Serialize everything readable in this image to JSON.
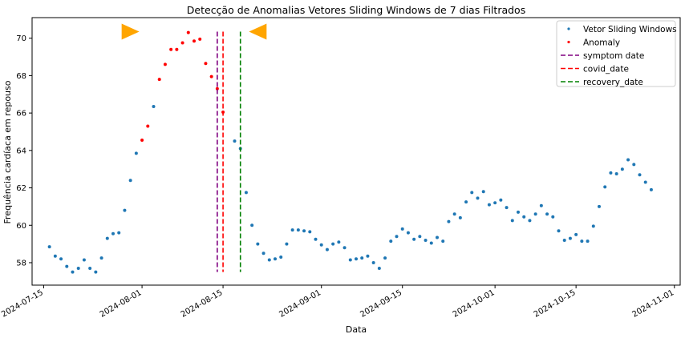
{
  "chart_data": {
    "type": "scatter",
    "title": "Detecção de Anomalias Vetores Sliding Windows de 7 dias Filtrados",
    "xlabel": "Data",
    "ylabel": "Frequência cardíaca em repouso",
    "xlim": [
      "2024-07-13",
      "2024-11-02"
    ],
    "ylim": [
      56.8,
      71.1
    ],
    "x_ticks": [
      "2024-07-15",
      "2024-08-01",
      "2024-08-15",
      "2024-09-01",
      "2024-09-15",
      "2024-10-01",
      "2024-10-15",
      "2024-11-01"
    ],
    "y_ticks": [
      58,
      60,
      62,
      64,
      66,
      68,
      70
    ],
    "grid": false,
    "legend_position": "top-right",
    "series": [
      {
        "name": "Vetor Sliding Windows",
        "color": "#1f77b4",
        "points": [
          [
            "2024-07-16",
            58.85
          ],
          [
            "2024-07-17",
            58.35
          ],
          [
            "2024-07-18",
            58.2
          ],
          [
            "2024-07-19",
            57.8
          ],
          [
            "2024-07-20",
            57.5
          ],
          [
            "2024-07-21",
            57.7
          ],
          [
            "2024-07-22",
            58.15
          ],
          [
            "2024-07-23",
            57.7
          ],
          [
            "2024-07-24",
            57.5
          ],
          [
            "2024-07-25",
            58.25
          ],
          [
            "2024-07-26",
            59.3
          ],
          [
            "2024-07-27",
            59.55
          ],
          [
            "2024-07-28",
            59.6
          ],
          [
            "2024-07-29",
            60.8
          ],
          [
            "2024-07-30",
            62.4
          ],
          [
            "2024-07-31",
            63.85
          ],
          [
            "2024-08-03",
            66.35
          ],
          [
            "2024-08-17",
            64.5
          ],
          [
            "2024-08-18",
            64.1
          ],
          [
            "2024-08-19",
            61.75
          ],
          [
            "2024-08-20",
            60.0
          ],
          [
            "2024-08-21",
            59.0
          ],
          [
            "2024-08-22",
            58.5
          ],
          [
            "2024-08-23",
            58.15
          ],
          [
            "2024-08-24",
            58.2
          ],
          [
            "2024-08-25",
            58.3
          ],
          [
            "2024-08-26",
            59.0
          ],
          [
            "2024-08-27",
            59.75
          ],
          [
            "2024-08-28",
            59.75
          ],
          [
            "2024-08-29",
            59.7
          ],
          [
            "2024-08-30",
            59.65
          ],
          [
            "2024-08-31",
            59.25
          ],
          [
            "2024-09-01",
            58.95
          ],
          [
            "2024-09-02",
            58.7
          ],
          [
            "2024-09-03",
            59.0
          ],
          [
            "2024-09-04",
            59.1
          ],
          [
            "2024-09-05",
            58.8
          ],
          [
            "2024-09-06",
            58.15
          ],
          [
            "2024-09-07",
            58.2
          ],
          [
            "2024-09-08",
            58.25
          ],
          [
            "2024-09-09",
            58.35
          ],
          [
            "2024-09-10",
            58.0
          ],
          [
            "2024-09-11",
            57.7
          ],
          [
            "2024-09-12",
            58.25
          ],
          [
            "2024-09-13",
            59.15
          ],
          [
            "2024-09-14",
            59.4
          ],
          [
            "2024-09-15",
            59.8
          ],
          [
            "2024-09-16",
            59.6
          ],
          [
            "2024-09-17",
            59.25
          ],
          [
            "2024-09-18",
            59.4
          ],
          [
            "2024-09-19",
            59.2
          ],
          [
            "2024-09-20",
            59.05
          ],
          [
            "2024-09-21",
            59.35
          ],
          [
            "2024-09-22",
            59.15
          ],
          [
            "2024-09-23",
            60.2
          ],
          [
            "2024-09-24",
            60.6
          ],
          [
            "2024-09-25",
            60.4
          ],
          [
            "2024-09-26",
            61.25
          ],
          [
            "2024-09-27",
            61.75
          ],
          [
            "2024-09-28",
            61.45
          ],
          [
            "2024-09-29",
            61.8
          ],
          [
            "2024-09-30",
            61.1
          ],
          [
            "2024-10-01",
            61.2
          ],
          [
            "2024-10-02",
            61.35
          ],
          [
            "2024-10-03",
            60.95
          ],
          [
            "2024-10-04",
            60.25
          ],
          [
            "2024-10-05",
            60.7
          ],
          [
            "2024-10-06",
            60.45
          ],
          [
            "2024-10-07",
            60.25
          ],
          [
            "2024-10-08",
            60.6
          ],
          [
            "2024-10-09",
            61.05
          ],
          [
            "2024-10-10",
            60.6
          ],
          [
            "2024-10-11",
            60.45
          ],
          [
            "2024-10-12",
            59.7
          ],
          [
            "2024-10-13",
            59.2
          ],
          [
            "2024-10-14",
            59.3
          ],
          [
            "2024-10-15",
            59.5
          ],
          [
            "2024-10-16",
            59.15
          ],
          [
            "2024-10-17",
            59.15
          ],
          [
            "2024-10-18",
            59.95
          ],
          [
            "2024-10-19",
            61.0
          ],
          [
            "2024-10-20",
            62.05
          ],
          [
            "2024-10-21",
            62.8
          ],
          [
            "2024-10-22",
            62.75
          ],
          [
            "2024-10-23",
            63.0
          ],
          [
            "2024-10-24",
            63.5
          ],
          [
            "2024-10-25",
            63.25
          ],
          [
            "2024-10-26",
            62.7
          ],
          [
            "2024-10-27",
            62.3
          ],
          [
            "2024-10-28",
            61.9
          ]
        ]
      },
      {
        "name": "Anomaly",
        "color": "#ff0000",
        "points": [
          [
            "2024-08-01",
            64.55
          ],
          [
            "2024-08-02",
            65.3
          ],
          [
            "2024-08-04",
            67.8
          ],
          [
            "2024-08-05",
            68.6
          ],
          [
            "2024-08-06",
            69.4
          ],
          [
            "2024-08-07",
            69.4
          ],
          [
            "2024-08-08",
            69.75
          ],
          [
            "2024-08-09",
            70.3
          ],
          [
            "2024-08-10",
            69.85
          ],
          [
            "2024-08-11",
            69.95
          ],
          [
            "2024-08-12",
            68.65
          ],
          [
            "2024-08-13",
            67.95
          ],
          [
            "2024-08-14",
            67.3
          ],
          [
            "2024-08-15",
            66.05
          ]
        ]
      }
    ],
    "vlines": [
      {
        "name": "symptom date",
        "date": "2024-08-14",
        "color": "#800080"
      },
      {
        "name": "covid_date",
        "date": "2024-08-15",
        "color": "#ff0000"
      },
      {
        "name": "recovery_date",
        "date": "2024-08-18",
        "color": "#008000"
      }
    ],
    "vline_range": [
      57.5,
      70.35
    ],
    "markers": [
      {
        "shape": "triangle-right",
        "date": "2024-07-30",
        "y": 70.35,
        "color": "#ffa500"
      },
      {
        "shape": "triangle-left",
        "date": "2024-08-21",
        "y": 70.35,
        "color": "#ffa500"
      }
    ]
  }
}
